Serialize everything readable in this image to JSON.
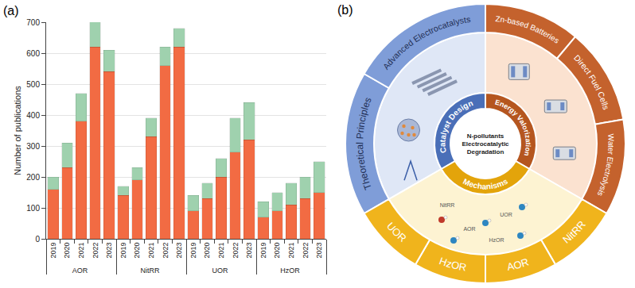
{
  "chart_data": {
    "type": "bar",
    "annotations": [
      "(a)"
    ],
    "y_label": "Number of publications",
    "categories": [
      "2019",
      "2020",
      "2021",
      "2022",
      "2023"
    ],
    "groups": [
      {
        "name": "AOR",
        "series": [
          {
            "color": "#f26b43",
            "values": [
              160,
              230,
              380,
              620,
              540
            ]
          },
          {
            "color": "#9fd1ae",
            "values": [
              40,
              80,
              90,
              100,
              70
            ]
          }
        ]
      },
      {
        "name": "NitRR",
        "series": [
          {
            "color": "#f26b43",
            "values": [
              140,
              190,
              330,
              560,
              620
            ]
          },
          {
            "color": "#9fd1ae",
            "values": [
              30,
              40,
              60,
              60,
              60
            ]
          }
        ]
      },
      {
        "name": "UOR",
        "series": [
          {
            "color": "#f26b43",
            "values": [
              90,
              130,
              200,
              280,
              320
            ]
          },
          {
            "color": "#9fd1ae",
            "values": [
              50,
              50,
              60,
              110,
              120
            ]
          }
        ]
      },
      {
        "name": "HzOR",
        "series": [
          {
            "color": "#f26b43",
            "values": [
              70,
              90,
              110,
              130,
              150
            ]
          },
          {
            "color": "#9fd1ae",
            "values": [
              50,
              60,
              70,
              70,
              100
            ]
          }
        ]
      }
    ],
    "stacked": true,
    "grid": true,
    "ylim": [
      0,
      700
    ],
    "yticks": [
      0,
      100,
      200,
      300,
      400,
      500,
      600,
      700
    ]
  },
  "diagram": {
    "label": "(b)",
    "center": "N-pollutants Electrocatalytic Degradation",
    "sections": [
      {
        "title": "Catalyst Design",
        "items": [
          "Theoretical Principles",
          "Advanced Electrocatalysts"
        ]
      },
      {
        "title": "Energy Valorization",
        "items": [
          "Zn-based Batteries",
          "Direct Fuel Cells",
          "Water Electrolysis"
        ]
      },
      {
        "title": "Mechanisms",
        "items": [
          "NitRR",
          "AOR",
          "HzOR",
          "UOR"
        ],
        "scheme_labels": [
          "NitRR",
          "AOR",
          "UOR",
          "HzOR"
        ]
      }
    ]
  }
}
